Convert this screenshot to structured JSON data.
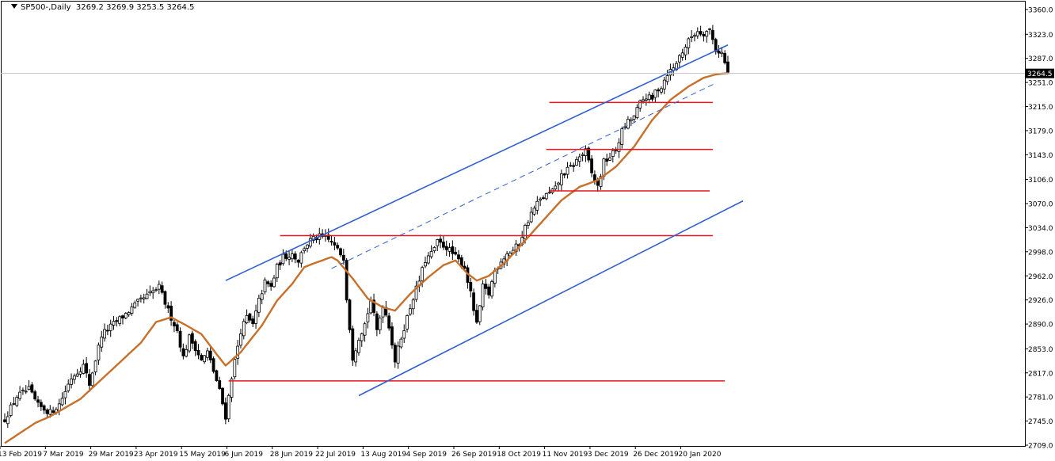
{
  "chart_data": {
    "type": "candlestick",
    "symbol_label": "SP500-,Daily",
    "ohlc_label": "3269.2 3269.9 3253.5 3264.5",
    "last_price": {
      "label": "3264.5",
      "value": 3264.5
    },
    "y_ticks": [
      3360.0,
      3323.0,
      3287.0,
      3251.0,
      3215.0,
      3179.0,
      3143.0,
      3106.0,
      3070.0,
      3034.0,
      2998.0,
      2962.0,
      2926.0,
      2890.0,
      2853.0,
      2817.0,
      2781.0,
      2745.0,
      2709.0
    ],
    "y_tick_labels": [
      "3360.0",
      "3323.0",
      "3287.0",
      "3251.0",
      "3215.0",
      "3179.0",
      "3143.0",
      "3106.0",
      "3070.0",
      "3034.0",
      "2998.0",
      "2962.0",
      "2926.0",
      "2890.0",
      "2853.0",
      "2817.0",
      "2781.0",
      "2745.0",
      "2709.0"
    ],
    "ylim": [
      2705,
      3365
    ],
    "bar_count": 240,
    "x_tick_labels": [
      {
        "label": "13 Feb 2019",
        "bar": 0
      },
      {
        "label": "7 Mar 2019",
        "bar": 15
      },
      {
        "label": "29 Mar 2019",
        "bar": 30
      },
      {
        "label": "23 Apr 2019",
        "bar": 45
      },
      {
        "label": "15 May 2019",
        "bar": 60
      },
      {
        "label": "6 Jun 2019",
        "bar": 75
      },
      {
        "label": "28 Jun 2019",
        "bar": 90
      },
      {
        "label": "22 Jul 2019",
        "bar": 105
      },
      {
        "label": "13 Aug 2019",
        "bar": 120
      },
      {
        "label": "4 Sep 2019",
        "bar": 135
      },
      {
        "label": "26 Sep 2019",
        "bar": 150
      },
      {
        "label": "18 Oct 2019",
        "bar": 165
      },
      {
        "label": "11 Nov 2019",
        "bar": 180
      },
      {
        "label": "3 Dec 2019",
        "bar": 195
      },
      {
        "label": "26 Dec 2019",
        "bar": 210
      },
      {
        "label": "20 Jan 2020",
        "bar": 225
      }
    ],
    "price_anchors": [
      [
        0,
        2748
      ],
      [
        4,
        2782
      ],
      [
        8,
        2792
      ],
      [
        11,
        2768
      ],
      [
        15,
        2758
      ],
      [
        18,
        2770
      ],
      [
        22,
        2810
      ],
      [
        26,
        2828
      ],
      [
        28,
        2800
      ],
      [
        32,
        2874
      ],
      [
        36,
        2890
      ],
      [
        40,
        2905
      ],
      [
        44,
        2922
      ],
      [
        48,
        2935
      ],
      [
        51,
        2945
      ],
      [
        54,
        2910
      ],
      [
        57,
        2880
      ],
      [
        59,
        2840
      ],
      [
        61,
        2870
      ],
      [
        63,
        2855
      ],
      [
        65,
        2835
      ],
      [
        67,
        2848
      ],
      [
        69,
        2820
      ],
      [
        71,
        2790
      ],
      [
        73,
        2752
      ],
      [
        75,
        2812
      ],
      [
        78,
        2880
      ],
      [
        80,
        2900
      ],
      [
        82,
        2888
      ],
      [
        84,
        2925
      ],
      [
        86,
        2952
      ],
      [
        88,
        2945
      ],
      [
        90,
        2975
      ],
      [
        92,
        2990
      ],
      [
        95,
        2995
      ],
      [
        97,
        2985
      ],
      [
        99,
        3005
      ],
      [
        101,
        3015
      ],
      [
        104,
        3020
      ],
      [
        106,
        3018
      ],
      [
        108,
        3012
      ],
      [
        110,
        3000
      ],
      [
        112,
        2990
      ],
      [
        113,
        2930
      ],
      [
        115,
        2840
      ],
      [
        117,
        2870
      ],
      [
        119,
        2890
      ],
      [
        121,
        2925
      ],
      [
        123,
        2880
      ],
      [
        125,
        2920
      ],
      [
        127,
        2888
      ],
      [
        129,
        2835
      ],
      [
        131,
        2870
      ],
      [
        133,
        2900
      ],
      [
        135,
        2930
      ],
      [
        137,
        2955
      ],
      [
        139,
        2985
      ],
      [
        141,
        2995
      ],
      [
        143,
        3012
      ],
      [
        146,
        3005
      ],
      [
        148,
        2995
      ],
      [
        150,
        2985
      ],
      [
        152,
        2975
      ],
      [
        154,
        2935
      ],
      [
        156,
        2888
      ],
      [
        158,
        2945
      ],
      [
        160,
        2935
      ],
      [
        162,
        2970
      ],
      [
        164,
        2985
      ],
      [
        166,
        2995
      ],
      [
        168,
        3000
      ],
      [
        170,
        3010
      ],
      [
        172,
        3035
      ],
      [
        174,
        3055
      ],
      [
        176,
        3070
      ],
      [
        178,
        3080
      ],
      [
        180,
        3085
      ],
      [
        182,
        3092
      ],
      [
        184,
        3112
      ],
      [
        186,
        3120
      ],
      [
        188,
        3128
      ],
      [
        190,
        3140
      ],
      [
        192,
        3148
      ],
      [
        194,
        3115
      ],
      [
        196,
        3095
      ],
      [
        198,
        3132
      ],
      [
        200,
        3140
      ],
      [
        202,
        3150
      ],
      [
        204,
        3178
      ],
      [
        206,
        3192
      ],
      [
        208,
        3200
      ],
      [
        210,
        3220
      ],
      [
        212,
        3230
      ],
      [
        214,
        3225
      ],
      [
        215,
        3238
      ],
      [
        217,
        3245
      ],
      [
        219,
        3265
      ],
      [
        221,
        3272
      ],
      [
        223,
        3290
      ],
      [
        225,
        3305
      ],
      [
        227,
        3320
      ],
      [
        229,
        3328
      ],
      [
        231,
        3325
      ],
      [
        233,
        3330
      ],
      [
        235,
        3300
      ],
      [
        237,
        3295
      ],
      [
        239,
        3264.5
      ]
    ],
    "ma_anchors": [
      [
        0,
        2712
      ],
      [
        10,
        2742
      ],
      [
        15,
        2752
      ],
      [
        25,
        2778
      ],
      [
        35,
        2820
      ],
      [
        45,
        2862
      ],
      [
        50,
        2893
      ],
      [
        55,
        2900
      ],
      [
        60,
        2888
      ],
      [
        65,
        2875
      ],
      [
        70,
        2845
      ],
      [
        73,
        2828
      ],
      [
        78,
        2848
      ],
      [
        85,
        2888
      ],
      [
        90,
        2925
      ],
      [
        95,
        2950
      ],
      [
        99,
        2975
      ],
      [
        103,
        2982
      ],
      [
        108,
        2990
      ],
      [
        110,
        2985
      ],
      [
        115,
        2958
      ],
      [
        120,
        2928
      ],
      [
        125,
        2915
      ],
      [
        129,
        2910
      ],
      [
        134,
        2935
      ],
      [
        140,
        2960
      ],
      [
        145,
        2978
      ],
      [
        149,
        2985
      ],
      [
        153,
        2965
      ],
      [
        156,
        2955
      ],
      [
        160,
        2962
      ],
      [
        166,
        2985
      ],
      [
        172,
        3015
      ],
      [
        178,
        3045
      ],
      [
        184,
        3075
      ],
      [
        190,
        3095
      ],
      [
        196,
        3105
      ],
      [
        202,
        3125
      ],
      [
        208,
        3155
      ],
      [
        214,
        3195
      ],
      [
        220,
        3225
      ],
      [
        226,
        3245
      ],
      [
        231,
        3258
      ],
      [
        235,
        3263
      ],
      [
        239,
        3265
      ]
    ],
    "series": [
      {
        "name": "SP500-,Daily",
        "kind": "candlestick",
        "color": "#000000"
      },
      {
        "kind": "moving-average",
        "color": "#C8702A"
      }
    ],
    "trendlines": [
      {
        "kind": "channel-upper",
        "color": "#2F5FD0",
        "points": [
          [
            73,
            2955
          ],
          [
            239,
            3307
          ]
        ]
      },
      {
        "kind": "channel-lower",
        "color": "#2F5FD0",
        "points": [
          [
            117,
            2783
          ],
          [
            244,
            3074
          ]
        ]
      },
      {
        "kind": "channel-mid",
        "color": "#2F5FD0",
        "dashed": true,
        "points": [
          [
            108,
            2973
          ],
          [
            235,
            3250
          ]
        ]
      }
    ],
    "support_resistance": [
      {
        "kind": "horizontal",
        "color": "#E8141E",
        "value": 3221,
        "from_bar": 180,
        "to_bar": 234
      },
      {
        "kind": "horizontal",
        "color": "#E8141E",
        "value": 3151,
        "from_bar": 179,
        "to_bar": 234
      },
      {
        "kind": "horizontal",
        "color": "#E8141E",
        "value": 3089,
        "from_bar": 180,
        "to_bar": 233
      },
      {
        "kind": "horizontal",
        "color": "#E8141E",
        "value": 3022,
        "from_bar": 91,
        "to_bar": 234
      },
      {
        "kind": "horizontal",
        "color": "#E8141E",
        "value": 2805,
        "from_bar": 74,
        "to_bar": 238
      }
    ],
    "colors": {
      "candle": "#000000",
      "moving_average": "#C8702A",
      "trendline": "#2F5FD0",
      "level": "#E8141E",
      "price_line": "#C0C0C0",
      "price_label_bg": "#000000",
      "price_label_fg": "#FFFFFF",
      "axis": "#000000",
      "background": "#FFFFFF"
    },
    "grid": false,
    "legend": "top-left"
  }
}
